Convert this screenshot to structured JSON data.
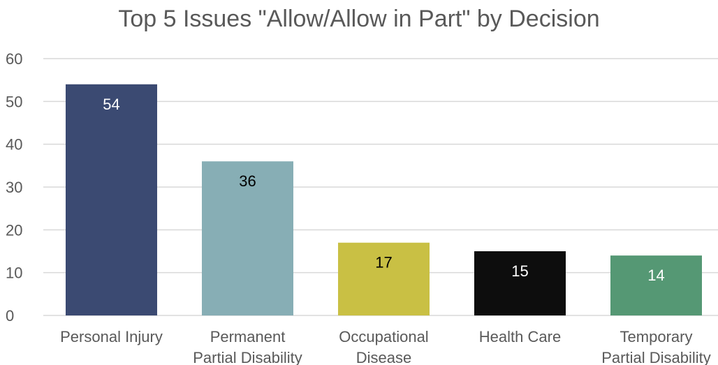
{
  "chart_data": {
    "type": "bar",
    "title": "Top 5 Issues \"Allow/Allow in Part\" by Decision",
    "xlabel": "",
    "ylabel": "",
    "ylim": [
      0,
      60
    ],
    "yticks": [
      0,
      10,
      20,
      30,
      40,
      50,
      60
    ],
    "grid": true,
    "legend": "none",
    "categories": [
      [
        "Personal Injury"
      ],
      [
        "Permanent",
        "Partial Disability"
      ],
      [
        "Occupational",
        "Disease"
      ],
      [
        "Health Care"
      ],
      [
        "Temporary",
        "Partial Disability"
      ]
    ],
    "values": [
      54,
      36,
      17,
      15,
      14
    ],
    "bar_colors": [
      "#3b4a72",
      "#87aeb5",
      "#c9c044",
      "#0d0d0d",
      "#559874"
    ],
    "data_label_colors": [
      "#ffffff",
      "#000000",
      "#000000",
      "#ffffff",
      "#ffffff"
    ],
    "gridline_color": "#d9d9d9",
    "axis_text_color": "#595959"
  }
}
